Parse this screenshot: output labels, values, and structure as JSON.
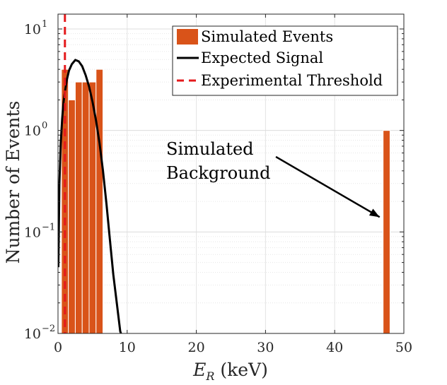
{
  "chart_data": {
    "type": "bar",
    "xlabel_main": "E",
    "xlabel_sub": "R",
    "xlabel_unit": " (keV)",
    "ylabel": "Number of Events",
    "xlim": [
      0,
      50
    ],
    "ylim": [
      0.01,
      14
    ],
    "yscale": "log",
    "grid": true,
    "legend_position": "top-right",
    "x_ticks": [
      0,
      10,
      20,
      30,
      40,
      50
    ],
    "x_tick_labels": [
      "0",
      "10",
      "20",
      "30",
      "40",
      "50"
    ],
    "y_ticks": [
      0.01,
      0.1,
      1,
      10
    ],
    "y_tick_labels": [
      {
        "base": "10",
        "exp": "−2"
      },
      {
        "base": "10",
        "exp": "−1"
      },
      {
        "base": "10",
        "exp": "0"
      },
      {
        "base": "10",
        "exp": "1"
      }
    ],
    "series": [
      {
        "name": "Simulated Events",
        "kind": "bars",
        "color": "#D95319",
        "bins": [
          {
            "x0": 0.5,
            "x1": 1.5,
            "value": 4
          },
          {
            "x0": 1.5,
            "x1": 2.5,
            "value": 2
          },
          {
            "x0": 2.5,
            "x1": 3.5,
            "value": 3
          },
          {
            "x0": 3.5,
            "x1": 4.5,
            "value": 3
          },
          {
            "x0": 4.5,
            "x1": 5.5,
            "value": 3
          },
          {
            "x0": 5.5,
            "x1": 6.5,
            "value": 4
          },
          {
            "x0": 47.0,
            "x1": 48.0,
            "value": 1
          }
        ]
      },
      {
        "name": "Expected Signal",
        "kind": "line",
        "color": "#000000",
        "points": [
          [
            0.05,
            0.045
          ],
          [
            0.2,
            0.3
          ],
          [
            0.4,
            0.75
          ],
          [
            0.6,
            1.3
          ],
          [
            0.8,
            1.9
          ],
          [
            1.0,
            2.4
          ],
          [
            1.3,
            3.2
          ],
          [
            1.6,
            3.9
          ],
          [
            2.0,
            4.5
          ],
          [
            2.5,
            4.95
          ],
          [
            3.0,
            4.8
          ],
          [
            3.5,
            4.3
          ],
          [
            4.0,
            3.5
          ],
          [
            4.5,
            2.7
          ],
          [
            5.0,
            1.9
          ],
          [
            5.5,
            1.25
          ],
          [
            6.0,
            0.75
          ],
          [
            6.5,
            0.4
          ],
          [
            7.0,
            0.19
          ],
          [
            7.5,
            0.085
          ],
          [
            8.0,
            0.038
          ],
          [
            8.5,
            0.02
          ],
          [
            9.0,
            0.0105
          ],
          [
            9.1,
            0.0095
          ]
        ]
      },
      {
        "name": "Experimental Threshold",
        "kind": "vline",
        "color": "#E41A1C",
        "x": 1.0
      }
    ],
    "annotation": {
      "line1": "Simulated",
      "line2": "Background",
      "arrow_from": [
        31.5,
        0.55
      ],
      "arrow_to": [
        46.5,
        0.14
      ]
    }
  }
}
